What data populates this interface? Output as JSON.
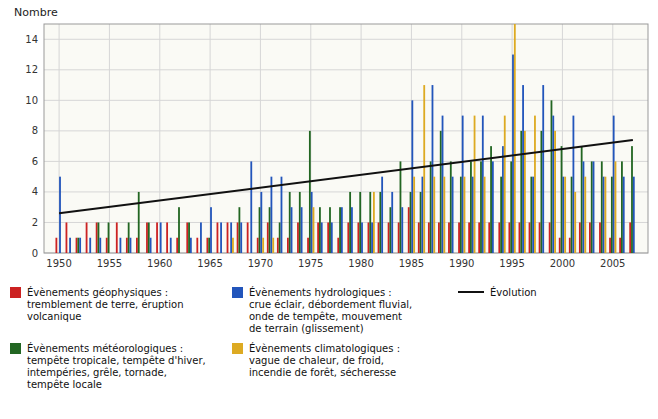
{
  "chart_data": {
    "type": "bar",
    "y_label": "Nombre",
    "x": [
      1950,
      1951,
      1952,
      1953,
      1954,
      1955,
      1956,
      1957,
      1958,
      1959,
      1960,
      1961,
      1962,
      1963,
      1964,
      1965,
      1966,
      1967,
      1968,
      1969,
      1970,
      1971,
      1972,
      1973,
      1974,
      1975,
      1976,
      1977,
      1978,
      1979,
      1980,
      1981,
      1982,
      1983,
      1984,
      1985,
      1986,
      1987,
      1988,
      1989,
      1990,
      1991,
      1992,
      1993,
      1994,
      1995,
      1996,
      1997,
      1998,
      1999,
      2000,
      2001,
      2002,
      2003,
      2004,
      2005,
      2006,
      2007
    ],
    "series": [
      {
        "name": "Évènements géophysiques :\ntremblement de terre, éruption\nvolcanique",
        "color": "#cc2222",
        "values": [
          1,
          2,
          1,
          2,
          2,
          1,
          2,
          1,
          1,
          2,
          2,
          2,
          1,
          2,
          1,
          1,
          2,
          2,
          2,
          2,
          1,
          2,
          1,
          1,
          2,
          1,
          2,
          2,
          1,
          2,
          2,
          2,
          2,
          2,
          2,
          3,
          2,
          2,
          2,
          2,
          2,
          2,
          2,
          2,
          2,
          2,
          2,
          2,
          2,
          2,
          1,
          1,
          2,
          2,
          2,
          1,
          1,
          2
        ]
      },
      {
        "name": "Évènements météorologiques :\ntempête tropicale, tempête d'hiver,\nintempéries, grêle, tornade,\ntempête locale",
        "color": "#226622",
        "values": [
          0,
          0,
          1,
          0,
          2,
          2,
          0,
          2,
          4,
          2,
          0,
          0,
          3,
          2,
          0,
          1,
          0,
          0,
          3,
          0,
          3,
          3,
          2,
          4,
          4,
          8,
          3,
          3,
          3,
          4,
          4,
          4,
          4,
          3,
          6,
          4,
          4,
          6,
          8,
          6,
          5,
          6,
          6,
          7,
          5,
          6,
          8,
          5,
          8,
          10,
          7,
          5,
          7,
          6,
          6,
          5,
          6,
          7
        ]
      },
      {
        "name": "Évènements hydrologiques :\ncrue éclair, débordement fluvial,\nonde de tempête, mouvement\nde terrain (glissement)",
        "color": "#2255bb",
        "values": [
          5,
          1,
          1,
          1,
          1,
          0,
          1,
          1,
          0,
          1,
          2,
          1,
          0,
          1,
          2,
          3,
          2,
          2,
          2,
          6,
          4,
          5,
          5,
          3,
          3,
          4,
          2,
          2,
          3,
          3,
          2,
          2,
          5,
          4,
          3,
          10,
          5,
          11,
          9,
          5,
          9,
          5,
          9,
          6,
          7,
          13,
          11,
          5,
          11,
          9,
          5,
          9,
          6,
          6,
          5,
          9,
          5,
          5
        ]
      },
      {
        "name": "Évènements climatologiques :\nvague de chaleur, de froid,\nincendie de forêt, sécheresse",
        "color": "#ddaa22",
        "values": [
          0,
          0,
          0,
          0,
          0,
          0,
          0,
          0,
          0,
          0,
          0,
          0,
          0,
          0,
          0,
          0,
          0,
          1,
          0,
          0,
          1,
          1,
          0,
          0,
          0,
          3,
          0,
          0,
          0,
          0,
          0,
          4,
          0,
          0,
          0,
          5,
          11,
          5,
          5,
          0,
          5,
          9,
          5,
          0,
          9,
          15,
          8,
          9,
          0,
          8,
          5,
          4,
          5,
          0,
          5,
          6,
          0,
          0
        ]
      },
      {
        "name": "Évolution",
        "type": "line",
        "color": "#111111",
        "x": [
          1950,
          2007
        ],
        "values": [
          2.6,
          7.4
        ]
      }
    ],
    "xlim": [
      1948.5,
      2008.5
    ],
    "xticks": [
      1950,
      1955,
      1960,
      1965,
      1970,
      1975,
      1980,
      1985,
      1990,
      1995,
      2000,
      2005
    ],
    "ylim": [
      0,
      15
    ],
    "yticks": [
      0,
      2,
      4,
      6,
      8,
      10,
      12,
      14
    ],
    "grid": true,
    "legend": "bottom"
  }
}
